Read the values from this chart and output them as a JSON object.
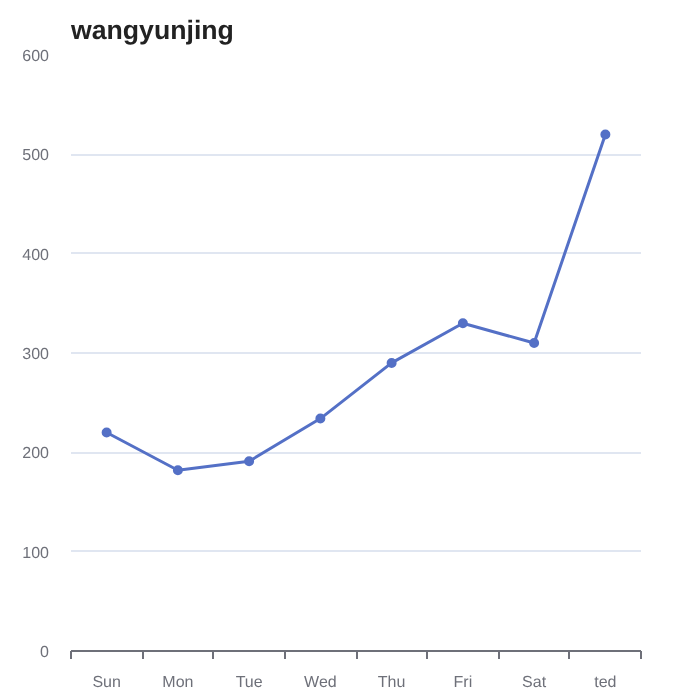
{
  "chart_data": {
    "type": "line",
    "title": "wangyunjing",
    "categories": [
      "Sun",
      "Mon",
      "Tue",
      "Wed",
      "Thu",
      "Fri",
      "Sat",
      "ted"
    ],
    "series": [
      {
        "color": "#5470c6",
        "values": [
          220,
          182,
          191,
          234,
          290,
          330,
          310,
          520
        ]
      }
    ],
    "ylim": [
      0,
      600
    ],
    "yticks": [
      0,
      100,
      200,
      300,
      400,
      500,
      600
    ],
    "grid": "y",
    "marker": "circle"
  }
}
